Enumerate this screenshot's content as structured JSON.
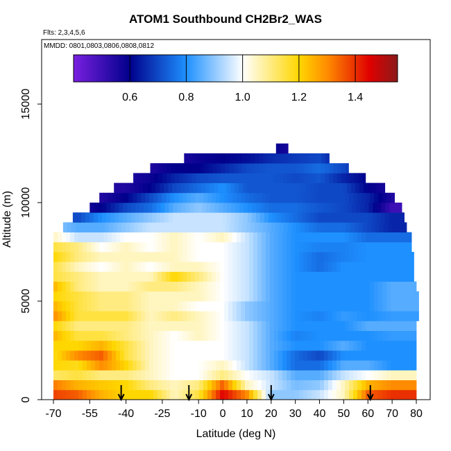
{
  "title": "ATOM1 Southbound CH2Br2_WAS",
  "flights_note": "Flts: 2,3,4,5,6",
  "dates_note": "MMDD: 0801,0803,0806,0808,0812",
  "chart_data": {
    "type": "heatmap",
    "title": "ATOM1 Southbound CH2Br2_WAS",
    "xlabel": "Latitude (deg N)",
    "ylabel": "Altitude (m)",
    "xlim": [
      -70,
      80
    ],
    "ylim": [
      0,
      17500
    ],
    "x_ticks": [
      -70,
      -55,
      -40,
      -25,
      -10,
      0,
      10,
      20,
      30,
      40,
      50,
      60,
      70,
      80
    ],
    "x_tick_labels": [
      "-70",
      "-55",
      "-40",
      "-25",
      "-10",
      "0",
      "10",
      "20",
      "30",
      "40",
      "50",
      "60",
      "70",
      "80"
    ],
    "y_ticks": [
      0,
      5000,
      10000,
      15000
    ],
    "y_tick_labels": [
      "0",
      "5000",
      "10000",
      "15000"
    ],
    "colorbar": {
      "range": [
        0.4,
        1.55
      ],
      "ticks": [
        0.6,
        0.8,
        1.0,
        1.2,
        1.4
      ],
      "tick_labels": [
        "0.6",
        "0.8",
        "1.0",
        "1.2",
        "1.4"
      ],
      "colors": [
        "#7a1fe0",
        "#00008b",
        "#1e90ff",
        "#ffffff",
        "#ffd700",
        "#ff8c00",
        "#e00000",
        "#8b1a1a"
      ]
    },
    "profile_arrows_lat": [
      -42,
      -14,
      20,
      61
    ],
    "altitude_bins_m": [
      0,
      500,
      1000,
      1500,
      2000,
      2500,
      3000,
      3500,
      4000,
      4500,
      5000,
      5500,
      6000,
      6500,
      7000,
      7500,
      8000,
      8500,
      9000,
      9500,
      10000,
      10500,
      11000,
      11500,
      12000,
      12500
    ],
    "lat_bins": [
      -70,
      -60,
      -50,
      -40,
      -30,
      -20,
      -10,
      0,
      10,
      20,
      30,
      40,
      50,
      60,
      70,
      80
    ],
    "lat_extent_by_altitude": [
      [
        -70,
        80
      ],
      [
        -70,
        80
      ],
      [
        -70,
        80
      ],
      [
        -70,
        80
      ],
      [
        -70,
        80
      ],
      [
        -70,
        80
      ],
      [
        -70,
        80
      ],
      [
        -70,
        80
      ],
      [
        -70,
        81
      ],
      [
        -70,
        81
      ],
      [
        -70,
        81
      ],
      [
        -70,
        80
      ],
      [
        -70,
        79
      ],
      [
        -70,
        79
      ],
      [
        -70,
        79
      ],
      [
        -70,
        78
      ],
      [
        -70,
        78
      ],
      [
        -66,
        76
      ],
      [
        -62,
        75
      ],
      [
        -55,
        74
      ],
      [
        -51,
        71
      ],
      [
        -45,
        67
      ],
      [
        -37,
        59
      ],
      [
        -30,
        52
      ],
      [
        -16,
        44
      ],
      [
        22,
        27
      ]
    ],
    "values": [
      [
        1.38,
        1.35,
        1.25,
        1.2,
        1.2,
        1.05,
        1.15,
        1.45,
        1.3,
        0.9,
        0.9,
        0.95,
        1.05,
        1.35,
        1.4
      ],
      [
        1.32,
        1.25,
        1.22,
        1.2,
        1.1,
        1.05,
        1.1,
        1.35,
        1.05,
        0.95,
        0.88,
        0.9,
        1.05,
        1.25,
        1.3
      ],
      [
        1.12,
        1.15,
        1.1,
        1.1,
        1.05,
        1.0,
        1.0,
        1.1,
        1.0,
        0.95,
        0.85,
        0.85,
        0.95,
        1.0,
        1.05
      ],
      [
        1.2,
        1.18,
        1.3,
        1.2,
        1.05,
        1.0,
        1.0,
        1.05,
        0.95,
        0.85,
        0.75,
        0.75,
        0.85,
        0.85,
        0.8
      ],
      [
        1.18,
        1.3,
        1.35,
        1.15,
        1.05,
        1.0,
        1.0,
        1.0,
        0.95,
        0.85,
        0.75,
        0.7,
        0.8,
        0.8,
        0.8
      ],
      [
        1.2,
        1.2,
        1.25,
        1.15,
        1.05,
        1.0,
        1.0,
        1.0,
        0.95,
        0.85,
        0.8,
        0.8,
        0.85,
        0.8,
        0.8
      ],
      [
        1.25,
        1.15,
        1.15,
        1.1,
        1.05,
        1.0,
        1.05,
        1.0,
        0.95,
        0.85,
        0.78,
        0.8,
        0.8,
        0.8,
        0.82
      ],
      [
        1.2,
        1.1,
        1.1,
        1.1,
        1.05,
        1.05,
        1.05,
        1.0,
        0.95,
        0.85,
        0.8,
        0.8,
        0.8,
        0.85,
        0.85
      ],
      [
        1.3,
        1.15,
        1.15,
        1.15,
        1.05,
        1.1,
        1.05,
        1.0,
        0.9,
        0.85,
        0.8,
        0.78,
        0.82,
        0.8,
        0.82
      ],
      [
        1.25,
        1.15,
        1.1,
        1.1,
        1.05,
        1.05,
        1.0,
        1.0,
        0.9,
        0.85,
        0.8,
        0.8,
        0.8,
        0.8,
        0.85
      ],
      [
        1.2,
        1.15,
        1.1,
        1.1,
        1.05,
        1.05,
        1.05,
        1.0,
        0.95,
        0.85,
        0.8,
        0.8,
        0.8,
        0.8,
        0.85
      ],
      [
        1.25,
        1.1,
        1.05,
        1.05,
        1.1,
        1.1,
        1.05,
        1.0,
        0.95,
        0.85,
        0.8,
        0.8,
        0.8,
        0.8,
        0.85
      ],
      [
        1.15,
        1.1,
        1.05,
        1.05,
        1.05,
        1.2,
        1.1,
        1.0,
        0.95,
        0.85,
        0.8,
        0.8,
        0.8,
        0.8,
        0.8
      ],
      [
        1.15,
        1.05,
        1.0,
        1.05,
        1.0,
        1.05,
        1.05,
        1.0,
        0.95,
        0.85,
        0.8,
        0.75,
        0.8,
        0.8,
        0.8
      ],
      [
        1.2,
        1.1,
        1.05,
        1.05,
        1.05,
        1.05,
        1.0,
        1.0,
        0.95,
        0.85,
        0.8,
        0.75,
        0.78,
        0.8,
        0.8
      ],
      [
        1.15,
        1.1,
        1.0,
        1.05,
        1.0,
        1.05,
        1.0,
        1.0,
        0.95,
        0.85,
        0.8,
        0.78,
        0.78,
        0.8,
        0.8
      ],
      [
        1.05,
        0.95,
        0.95,
        1.0,
        1.0,
        1.05,
        1.0,
        1.05,
        0.95,
        0.85,
        0.8,
        0.8,
        0.8,
        0.75,
        0.75
      ],
      [
        0.9,
        0.85,
        0.85,
        0.9,
        0.95,
        0.95,
        0.95,
        0.95,
        0.9,
        0.85,
        0.8,
        0.75,
        0.75,
        0.7,
        0.65
      ],
      [
        0.75,
        0.7,
        0.8,
        0.85,
        0.9,
        0.95,
        0.95,
        0.95,
        0.9,
        0.8,
        0.75,
        0.7,
        0.7,
        0.7,
        0.65
      ],
      [
        0.62,
        0.55,
        0.6,
        0.7,
        0.75,
        0.85,
        0.9,
        0.85,
        0.8,
        0.75,
        0.75,
        0.72,
        0.7,
        0.65,
        0.5
      ],
      [
        0.62,
        0.55,
        0.55,
        0.6,
        0.7,
        0.8,
        0.85,
        0.8,
        0.75,
        0.72,
        0.72,
        0.7,
        0.7,
        0.65,
        0.55
      ],
      [
        0.6,
        0.55,
        0.55,
        0.55,
        0.6,
        0.7,
        0.75,
        0.8,
        0.72,
        0.72,
        0.72,
        0.7,
        0.7,
        0.6,
        0.55
      ],
      [
        0.6,
        0.55,
        0.55,
        0.55,
        0.58,
        0.65,
        0.7,
        0.72,
        0.72,
        0.72,
        0.7,
        0.72,
        0.65,
        0.6,
        0.55
      ],
      [
        0.55,
        0.55,
        0.55,
        0.55,
        0.55,
        0.6,
        0.6,
        0.65,
        0.7,
        0.72,
        0.72,
        0.75,
        0.7,
        0.6,
        0.55
      ],
      [
        0.55,
        0.55,
        0.55,
        0.55,
        0.55,
        0.55,
        0.58,
        0.6,
        0.62,
        0.66,
        0.68,
        0.7,
        0.6,
        0.55,
        0.55
      ],
      [
        0.55,
        0.55,
        0.55,
        0.55,
        0.55,
        0.55,
        0.55,
        0.55,
        0.55,
        0.6,
        0.55,
        0.55,
        0.55,
        0.55,
        0.55
      ]
    ]
  }
}
